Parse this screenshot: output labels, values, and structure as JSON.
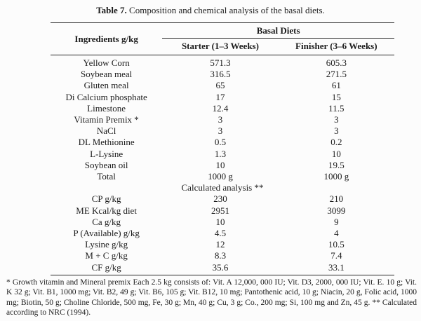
{
  "page": {
    "title_label": "Table 7.",
    "title_text": "Composition and chemical analysis of the basal diets."
  },
  "table": {
    "ingredients_header": "Ingredients g/kg",
    "group_header": "Basal Diets",
    "columns": [
      "Starter (1–3 Weeks)",
      "Finisher (3–6 Weeks)"
    ],
    "ingredient_rows": [
      {
        "ingredient": "Yellow Corn",
        "starter": "571.3",
        "finisher": "605.3"
      },
      {
        "ingredient": "Soybean meal",
        "starter": "316.5",
        "finisher": "271.5"
      },
      {
        "ingredient": "Gluten meal",
        "starter": "65",
        "finisher": "61"
      },
      {
        "ingredient": "Di Calcium phosphate",
        "starter": "17",
        "finisher": "15"
      },
      {
        "ingredient": "Limestone",
        "starter": "12.4",
        "finisher": "11.5"
      },
      {
        "ingredient": "Vitamin Premix *",
        "starter": "3",
        "finisher": "3"
      },
      {
        "ingredient": "NaCl",
        "starter": "3",
        "finisher": "3"
      },
      {
        "ingredient": "DL Methionine",
        "starter": "0.5",
        "finisher": "0.2"
      },
      {
        "ingredient": "L-Lysine",
        "starter": "1.3",
        "finisher": "10"
      },
      {
        "ingredient": "Soybean oil",
        "starter": "10",
        "finisher": "19.5"
      },
      {
        "ingredient": "Total",
        "starter": "1000 g",
        "finisher": "1000 g"
      }
    ],
    "section_label": "Calculated analysis **",
    "analysis_rows": [
      {
        "ingredient": "CP g/kg",
        "starter": "230",
        "finisher": "210"
      },
      {
        "ingredient": "ME Kcal/kg diet",
        "starter": "2951",
        "finisher": "3099"
      },
      {
        "ingredient": "Ca g/kg",
        "starter": "10",
        "finisher": "9"
      },
      {
        "ingredient": "P (Available) g/kg",
        "starter": "4.5",
        "finisher": "4"
      },
      {
        "ingredient": "Lysine g/kg",
        "starter": "12",
        "finisher": "10.5"
      },
      {
        "ingredient": "M + C g/kg",
        "starter": "8.3",
        "finisher": "7.4"
      },
      {
        "ingredient": "CF g/kg",
        "starter": "35.6",
        "finisher": "33.1"
      }
    ]
  },
  "footnote": "* Growth vitamin and Mineral premix Each 2.5 kg consists of: Vit. A 12,000, 000 IU; Vit. D3, 2000, 000 IU; Vit. E. 10 g; Vit. K 32 g; Vit. B1, 1000 mg; Vit. B2, 49 g; Vit. B6, 105 g; Vit. B12, 10 mg; Pantothenic acid, 10 g; Niacin, 20 g, Folic acid, 1000 mg; Biotin, 50 g; Choline Chloride, 500 mg, Fe, 30 g; Mn, 40 g; Cu, 3 g; Co., 200 mg; Si, 100 mg and Zn, 45 g. ** Calculated according to NRC (1994).",
  "colors": {
    "text": "#1c1c1c",
    "rule": "#262626",
    "background": "#fcfcfc"
  }
}
